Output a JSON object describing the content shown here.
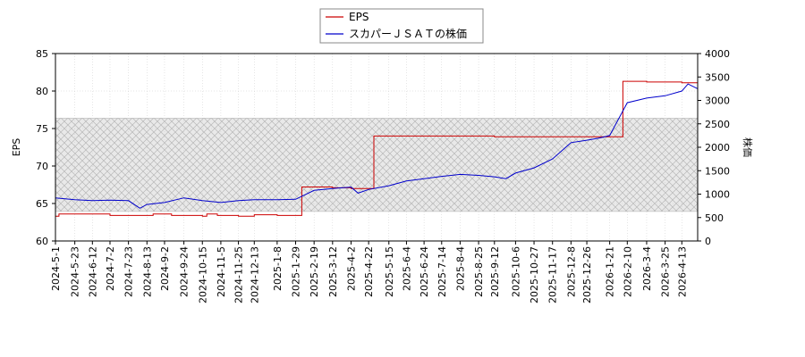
{
  "chart_data": {
    "type": "line",
    "title": "",
    "legend": {
      "placement": "top-center",
      "entries": [
        "EPS",
        "スカパーＪＳＡＴの株価"
      ]
    },
    "colors": {
      "eps": "#cc0000",
      "price": "#0000cc",
      "band": "#dddddd"
    },
    "grid": true,
    "x_axis": {
      "type": "date",
      "range": [
        "2024-5-1",
        "2026-5-1"
      ],
      "tick_labels": [
        "2024-5-1",
        "2024-5-23",
        "2024-6-12",
        "2024-7-2",
        "2024-7-23",
        "2024-8-13",
        "2024-9-2",
        "2024-9-24",
        "2024-10-15",
        "2024-11-5",
        "2024-11-25",
        "2024-12-13",
        "2025-1-8",
        "2025-1-29",
        "2025-2-19",
        "2025-3-12",
        "2025-4-2",
        "2025-4-22",
        "2025-5-15",
        "2025-6-4",
        "2025-6-24",
        "2025-7-14",
        "2025-8-4",
        "2025-8-25",
        "2025-9-12",
        "2025-10-6",
        "2025-10-27",
        "2025-11-17",
        "2025-12-8",
        "2025-12-26",
        "2026-1-21",
        "2026-2-10",
        "2026-3-4",
        "2026-3-25",
        "2026-4-13"
      ]
    },
    "y_left": {
      "label": "EPS",
      "range": [
        60,
        85
      ],
      "ticks": [
        "60",
        "65",
        "70",
        "75",
        "80",
        "85"
      ]
    },
    "y_right": {
      "label": "株価",
      "range": [
        0,
        4000
      ],
      "ticks": [
        "0",
        "500",
        "1000",
        "1500",
        "2000",
        "2500",
        "3000",
        "3500",
        "4000"
      ]
    },
    "band": {
      "axis": "y_right",
      "range": [
        630,
        2620
      ]
    },
    "series": [
      {
        "name": "EPS",
        "axis": "y_left",
        "step": true,
        "points": [
          [
            "2024-5-1",
            63.3
          ],
          [
            "2024-5-5",
            63.6
          ],
          [
            "2024-7-2",
            63.4
          ],
          [
            "2024-8-13",
            63.4
          ],
          [
            "2024-8-20",
            63.6
          ],
          [
            "2024-9-10",
            63.4
          ],
          [
            "2024-10-15",
            63.3
          ],
          [
            "2024-10-20",
            63.6
          ],
          [
            "2024-11-1",
            63.4
          ],
          [
            "2024-11-25",
            63.3
          ],
          [
            "2024-12-13",
            63.5
          ],
          [
            "2025-1-8",
            63.4
          ],
          [
            "2025-2-5",
            67.2
          ],
          [
            "2025-3-12",
            67.1
          ],
          [
            "2025-4-2",
            67.0
          ],
          [
            "2025-4-28",
            74.0
          ],
          [
            "2025-6-4",
            74.0
          ],
          [
            "2025-9-12",
            73.9
          ],
          [
            "2025-12-26",
            73.9
          ],
          [
            "2026-2-5",
            81.3
          ],
          [
            "2026-3-4",
            81.2
          ],
          [
            "2026-4-13",
            81.1
          ],
          [
            "2026-5-1",
            81.1
          ]
        ]
      },
      {
        "name": "スカパーＪＳＡＴの株価",
        "axis": "y_right",
        "points": [
          [
            "2024-5-1",
            920
          ],
          [
            "2024-5-23",
            880
          ],
          [
            "2024-6-12",
            860
          ],
          [
            "2024-7-2",
            870
          ],
          [
            "2024-7-23",
            860
          ],
          [
            "2024-8-5",
            700
          ],
          [
            "2024-8-13",
            780
          ],
          [
            "2024-9-2",
            820
          ],
          [
            "2024-9-24",
            920
          ],
          [
            "2024-10-15",
            860
          ],
          [
            "2024-11-5",
            820
          ],
          [
            "2024-11-25",
            860
          ],
          [
            "2024-12-13",
            880
          ],
          [
            "2025-1-8",
            880
          ],
          [
            "2025-1-29",
            890
          ],
          [
            "2025-2-19",
            1080
          ],
          [
            "2025-3-12",
            1120
          ],
          [
            "2025-4-2",
            1150
          ],
          [
            "2025-4-10",
            1020
          ],
          [
            "2025-4-22",
            1100
          ],
          [
            "2025-5-15",
            1180
          ],
          [
            "2025-6-4",
            1280
          ],
          [
            "2025-6-24",
            1330
          ],
          [
            "2025-7-14",
            1380
          ],
          [
            "2025-8-4",
            1420
          ],
          [
            "2025-8-25",
            1400
          ],
          [
            "2025-9-12",
            1370
          ],
          [
            "2025-9-25",
            1330
          ],
          [
            "2025-10-6",
            1450
          ],
          [
            "2025-10-27",
            1560
          ],
          [
            "2025-11-17",
            1750
          ],
          [
            "2025-12-8",
            2100
          ],
          [
            "2025-12-26",
            2150
          ],
          [
            "2026-1-10",
            2200
          ],
          [
            "2026-1-21",
            2250
          ],
          [
            "2026-2-10",
            2950
          ],
          [
            "2026-3-4",
            3050
          ],
          [
            "2026-3-25",
            3100
          ],
          [
            "2026-4-13",
            3200
          ],
          [
            "2026-4-20",
            3350
          ],
          [
            "2026-5-1",
            3250
          ]
        ]
      }
    ]
  }
}
